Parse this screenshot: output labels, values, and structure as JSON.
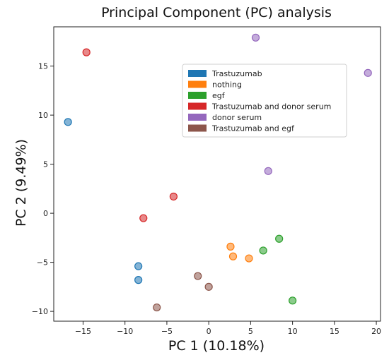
{
  "chart_data": {
    "type": "scatter",
    "title": "Principal Component (PC) analysis",
    "xlabel": "PC 1 (10.18%)",
    "ylabel": "PC 2 (9.49%)",
    "xlim": [
      -18.5,
      20.5
    ],
    "ylim": [
      -11,
      19
    ],
    "xticks": [
      -15,
      -10,
      -5,
      0,
      5,
      10,
      15,
      20
    ],
    "yticks": [
      -10,
      -5,
      0,
      5,
      10,
      15
    ],
    "grid": false,
    "legend_position": "upper-center-right",
    "series": [
      {
        "name": "Trastuzumab",
        "color": "#1f77b4",
        "points": [
          [
            -16.8,
            9.3
          ],
          [
            -8.4,
            -5.4
          ],
          [
            -8.4,
            -6.8
          ]
        ]
      },
      {
        "name": "nothing",
        "color": "#ff7f0e",
        "points": [
          [
            2.6,
            -3.4
          ],
          [
            2.9,
            -4.4
          ],
          [
            4.8,
            -4.6
          ]
        ]
      },
      {
        "name": "egf",
        "color": "#2ca02c",
        "points": [
          [
            6.5,
            -3.8
          ],
          [
            8.4,
            -2.6
          ],
          [
            10.0,
            -8.9
          ]
        ]
      },
      {
        "name": "Trastuzumab and donor serum",
        "color": "#d62728",
        "points": [
          [
            -14.6,
            16.4
          ],
          [
            -4.2,
            1.7
          ],
          [
            -7.8,
            -0.5
          ]
        ]
      },
      {
        "name": "donor serum",
        "color": "#9467bd",
        "points": [
          [
            5.6,
            17.9
          ],
          [
            7.1,
            4.3
          ],
          [
            19.0,
            14.3
          ]
        ]
      },
      {
        "name": "Trastuzumab and egf",
        "color": "#8c564b",
        "points": [
          [
            -1.3,
            -6.4
          ],
          [
            0.0,
            -7.5
          ],
          [
            -6.2,
            -9.6
          ]
        ]
      }
    ]
  }
}
